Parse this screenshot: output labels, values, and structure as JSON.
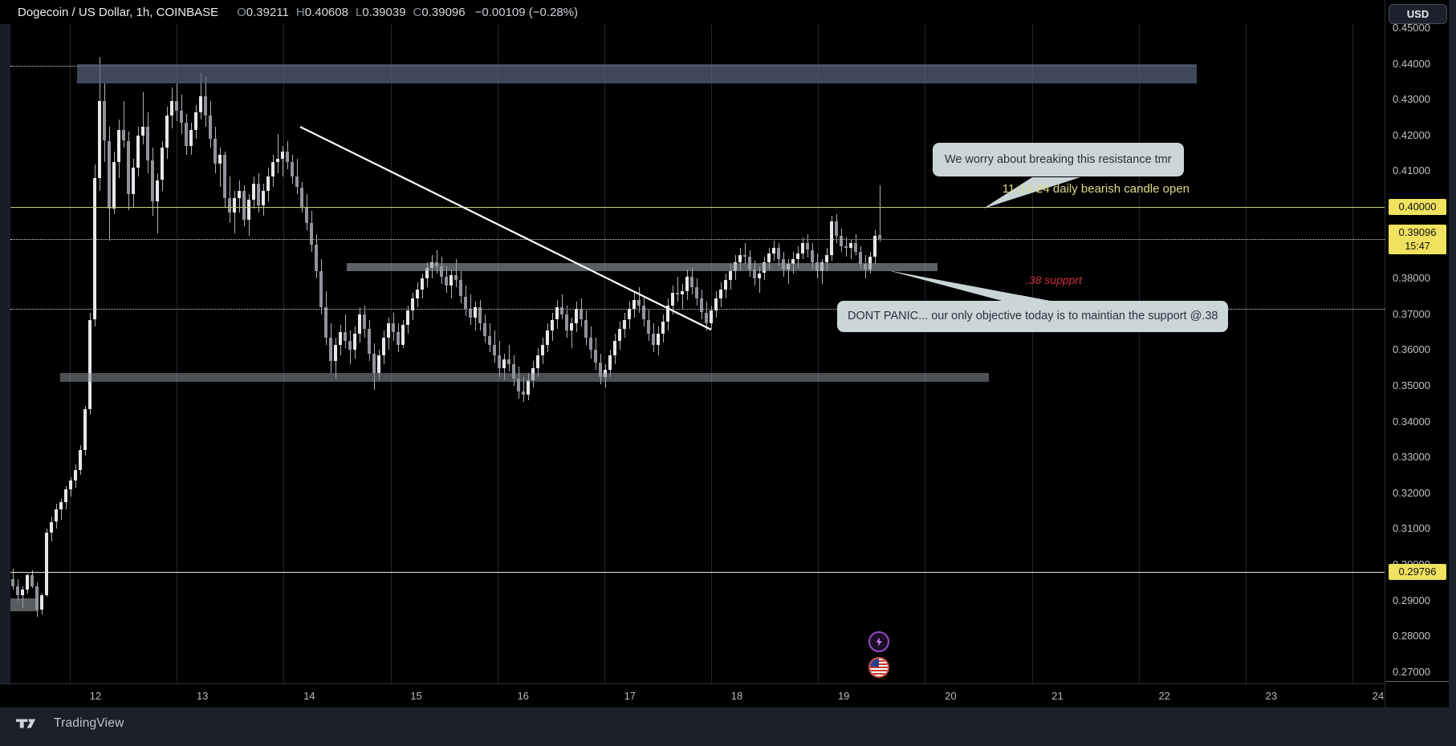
{
  "header": {
    "symbol": "Dogecoin / US Dollar, 1h, COINBASE",
    "open_label": "O",
    "open": "0.39211",
    "high_label": "H",
    "high": "0.40608",
    "low_label": "L",
    "low": "0.39039",
    "close_label": "C",
    "close": "0.39096",
    "change": "−0.00109 (−0.28%)"
  },
  "price_axis": {
    "currency": "USD",
    "badge_resistance": "0.40000",
    "badge_price": "0.39096",
    "badge_countdown": "15:47",
    "badge_support": "0.29796"
  },
  "annotations": {
    "callout_resistance": "We worry about breaking this resistance tmr",
    "callout_support": "DONT PANIC... our only objective today is to maintian the support @.38",
    "line_label": "11-14-24 daily bearish candle open",
    "support_label": ".38 suppprt"
  },
  "footer": {
    "brand": "TradingView"
  },
  "colors": {
    "background": "#000000",
    "panel": "#1b1f2a",
    "badge_yellow": "#f0e15e",
    "level_yellow": "#c9c97f",
    "support_line": "#e8e6cf",
    "callout_bg": "#ccd6d9",
    "callout_text": "#26333a",
    "label_yellow": "#dedc8b",
    "label_red": "#d2303e",
    "candle_up": "#e6e7e9",
    "candle_down": "#90939a",
    "icon_purple": "#9948c9",
    "icon_red_ring": "#c74b42"
  },
  "chart_data": {
    "type": "candlestick",
    "title": "Dogecoin / US Dollar, 1h, COINBASE",
    "interval": "1h",
    "legend_ohlc": {
      "open": 0.39211,
      "high": 0.40608,
      "low": 0.39039,
      "close": 0.39096,
      "change": -0.00109,
      "change_pct": -0.28
    },
    "x_axis": {
      "unit": "day of month (November)",
      "labels": [
        "12",
        "13",
        "14",
        "15",
        "16",
        "17",
        "18",
        "19",
        "20",
        "21",
        "22",
        "23",
        "24"
      ]
    },
    "y_axis": {
      "tick_min": 0.27,
      "tick_max": 0.45,
      "tick_step": 0.01,
      "grid": false
    },
    "levels": [
      {
        "name": "resistance-line-0.40",
        "price": 0.4,
        "style": "solid",
        "color": "#c9c97f",
        "label": "11-14-24 daily bearish candle open",
        "day_from": 11.2,
        "day_to": 24.06
      },
      {
        "name": "support-line-0.29796",
        "price": 0.29796,
        "style": "solid",
        "color": "#e8e6cf",
        "day_from": 11.2,
        "day_to": 24.06
      },
      {
        "name": "current-price-line",
        "price": 0.39096,
        "style": "dotted",
        "color": "#d8d9dd",
        "day_from": 11.2,
        "day_to": 24.06
      },
      {
        "name": "dotted-line-0.3715",
        "price": 0.3715,
        "style": "dotted",
        "color": "#d8d9dd",
        "day_from": 11.2,
        "day_to": 24.06
      },
      {
        "name": "dotted-line-0.4395",
        "price": 0.4395,
        "style": "dotted",
        "color": "#d8d9dd",
        "day_from": 11.2,
        "day_to": 22.3,
        "under_zone": true
      }
    ],
    "zones": [
      {
        "name": "resistance-zone-0.44",
        "day_from": 11.83,
        "day_to": 22.3,
        "price_from": 0.4346,
        "price_to": 0.4399,
        "color": "rgba(86,100,122,0.72)"
      },
      {
        "name": "support-zone-0.384",
        "day_from": 14.35,
        "day_to": 19.88,
        "price_from": 0.382,
        "price_to": 0.3843,
        "color": "rgba(148,153,161,0.62)"
      },
      {
        "name": "support-zone-0.352",
        "day_from": 11.67,
        "day_to": 20.36,
        "price_from": 0.3511,
        "price_to": 0.3536,
        "color": "rgba(138,143,151,0.56)"
      },
      {
        "name": "box-0.29",
        "day_from": 11.18,
        "day_to": 11.47,
        "price_from": 0.287,
        "price_to": 0.2906,
        "color": "rgba(148,153,161,0.6)"
      }
    ],
    "trendline": {
      "day_from": 13.915,
      "price_from": 0.4224,
      "day_to": 17.76,
      "price_to": 0.3657,
      "color": "#ffffff"
    },
    "candles_start_day": 11.212,
    "candles_step_day": 0.04506,
    "candles": [
      [
        0.296,
        0.299,
        0.293,
        0.294
      ],
      [
        0.294,
        0.296,
        0.29,
        0.2915
      ],
      [
        0.2915,
        0.294,
        0.288,
        0.293
      ],
      [
        0.293,
        0.2975,
        0.292,
        0.297
      ],
      [
        0.297,
        0.2985,
        0.2935,
        0.294
      ],
      [
        0.294,
        0.295,
        0.2855,
        0.2875
      ],
      [
        0.2875,
        0.292,
        0.286,
        0.2915
      ],
      [
        0.2915,
        0.31,
        0.291,
        0.309
      ],
      [
        0.309,
        0.3135,
        0.3065,
        0.312
      ],
      [
        0.312,
        0.317,
        0.31,
        0.3155
      ],
      [
        0.3155,
        0.3185,
        0.3125,
        0.3175
      ],
      [
        0.3175,
        0.322,
        0.3155,
        0.321
      ],
      [
        0.321,
        0.3245,
        0.319,
        0.3235
      ],
      [
        0.3235,
        0.328,
        0.3215,
        0.3265
      ],
      [
        0.3265,
        0.3335,
        0.325,
        0.332
      ],
      [
        0.332,
        0.3445,
        0.3305,
        0.3435
      ],
      [
        0.3435,
        0.3705,
        0.342,
        0.3685
      ],
      [
        0.3685,
        0.412,
        0.3665,
        0.408
      ],
      [
        0.408,
        0.442,
        0.4045,
        0.4295
      ],
      [
        0.4295,
        0.4345,
        0.4125,
        0.4185
      ],
      [
        0.4185,
        0.4225,
        0.3905,
        0.3995
      ],
      [
        0.3995,
        0.4155,
        0.398,
        0.4125
      ],
      [
        0.4125,
        0.4245,
        0.408,
        0.4215
      ],
      [
        0.4215,
        0.4295,
        0.4165,
        0.4185
      ],
      [
        0.4185,
        0.421,
        0.399,
        0.4035
      ],
      [
        0.4035,
        0.4135,
        0.4,
        0.411
      ],
      [
        0.411,
        0.4225,
        0.4085,
        0.42
      ],
      [
        0.42,
        0.432,
        0.4175,
        0.4225
      ],
      [
        0.4225,
        0.4265,
        0.4095,
        0.413
      ],
      [
        0.413,
        0.4165,
        0.3975,
        0.4015
      ],
      [
        0.4015,
        0.4095,
        0.3925,
        0.4075
      ],
      [
        0.4075,
        0.4185,
        0.4045,
        0.4165
      ],
      [
        0.4165,
        0.428,
        0.4135,
        0.4255
      ],
      [
        0.4255,
        0.4335,
        0.422,
        0.4295
      ],
      [
        0.4295,
        0.4345,
        0.424,
        0.427
      ],
      [
        0.427,
        0.4315,
        0.4205,
        0.4235
      ],
      [
        0.4235,
        0.426,
        0.4145,
        0.417
      ],
      [
        0.417,
        0.4235,
        0.4145,
        0.4215
      ],
      [
        0.4215,
        0.4285,
        0.419,
        0.4265
      ],
      [
        0.4265,
        0.4375,
        0.4245,
        0.431
      ],
      [
        0.431,
        0.4365,
        0.4225,
        0.4255
      ],
      [
        0.4255,
        0.4295,
        0.4165,
        0.419
      ],
      [
        0.419,
        0.4225,
        0.4095,
        0.412
      ],
      [
        0.412,
        0.4165,
        0.4055,
        0.4145
      ],
      [
        0.4145,
        0.4155,
        0.4,
        0.4025
      ],
      [
        0.4025,
        0.4085,
        0.3955,
        0.3985
      ],
      [
        0.3985,
        0.4045,
        0.3925,
        0.4025
      ],
      [
        0.4025,
        0.4075,
        0.3985,
        0.4045
      ],
      [
        0.4045,
        0.406,
        0.3945,
        0.3965
      ],
      [
        0.3965,
        0.4035,
        0.392,
        0.402
      ],
      [
        0.402,
        0.4085,
        0.3995,
        0.4065
      ],
      [
        0.4065,
        0.4095,
        0.3985,
        0.4005
      ],
      [
        0.4005,
        0.4065,
        0.3975,
        0.4045
      ],
      [
        0.4045,
        0.411,
        0.4015,
        0.4085
      ],
      [
        0.4085,
        0.4145,
        0.4055,
        0.4125
      ],
      [
        0.4125,
        0.4205,
        0.4095,
        0.4135
      ],
      [
        0.4135,
        0.417,
        0.4085,
        0.4155
      ],
      [
        0.4155,
        0.4185,
        0.4105,
        0.4125
      ],
      [
        0.4125,
        0.4145,
        0.4065,
        0.4085
      ],
      [
        0.4085,
        0.4135,
        0.4035,
        0.4055
      ],
      [
        0.4055,
        0.407,
        0.3985,
        0.4
      ],
      [
        0.4,
        0.4035,
        0.3935,
        0.3955
      ],
      [
        0.3955,
        0.399,
        0.3875,
        0.3895
      ],
      [
        0.3895,
        0.3925,
        0.38,
        0.382
      ],
      [
        0.382,
        0.3855,
        0.37,
        0.372
      ],
      [
        0.372,
        0.3765,
        0.3615,
        0.3635
      ],
      [
        0.3635,
        0.3675,
        0.3535,
        0.357
      ],
      [
        0.357,
        0.3635,
        0.352,
        0.3615
      ],
      [
        0.3615,
        0.367,
        0.3585,
        0.365
      ],
      [
        0.365,
        0.37,
        0.3605,
        0.3625
      ],
      [
        0.3625,
        0.3655,
        0.356,
        0.36
      ],
      [
        0.36,
        0.3665,
        0.3575,
        0.3645
      ],
      [
        0.3645,
        0.372,
        0.362,
        0.37
      ],
      [
        0.37,
        0.3725,
        0.3635,
        0.366
      ],
      [
        0.366,
        0.3685,
        0.357,
        0.359
      ],
      [
        0.359,
        0.362,
        0.349,
        0.3535
      ],
      [
        0.3535,
        0.36,
        0.3515,
        0.3585
      ],
      [
        0.3585,
        0.3655,
        0.356,
        0.3635
      ],
      [
        0.3635,
        0.369,
        0.36,
        0.3675
      ],
      [
        0.3675,
        0.3705,
        0.3625,
        0.365
      ],
      [
        0.365,
        0.3675,
        0.3595,
        0.3615
      ],
      [
        0.3615,
        0.3685,
        0.3605,
        0.367
      ],
      [
        0.367,
        0.3725,
        0.3645,
        0.371
      ],
      [
        0.371,
        0.376,
        0.3685,
        0.3745
      ],
      [
        0.3745,
        0.379,
        0.372,
        0.377
      ],
      [
        0.377,
        0.3815,
        0.3745,
        0.38
      ],
      [
        0.38,
        0.3845,
        0.3775,
        0.383
      ],
      [
        0.383,
        0.3865,
        0.38,
        0.3845
      ],
      [
        0.3845,
        0.388,
        0.3815,
        0.3835
      ],
      [
        0.3835,
        0.386,
        0.3785,
        0.3805
      ],
      [
        0.3805,
        0.3835,
        0.376,
        0.378
      ],
      [
        0.378,
        0.3825,
        0.3745,
        0.381
      ],
      [
        0.381,
        0.3855,
        0.3775,
        0.3795
      ],
      [
        0.3795,
        0.382,
        0.373,
        0.375
      ],
      [
        0.375,
        0.378,
        0.3695,
        0.3715
      ],
      [
        0.3715,
        0.3755,
        0.367,
        0.369
      ],
      [
        0.369,
        0.3735,
        0.3655,
        0.372
      ],
      [
        0.372,
        0.374,
        0.3655,
        0.3675
      ],
      [
        0.3675,
        0.37,
        0.362,
        0.364
      ],
      [
        0.364,
        0.3675,
        0.3595,
        0.3615
      ],
      [
        0.3615,
        0.3655,
        0.3565,
        0.3585
      ],
      [
        0.3585,
        0.3625,
        0.3525,
        0.355
      ],
      [
        0.355,
        0.359,
        0.3515,
        0.3575
      ],
      [
        0.3575,
        0.3615,
        0.354,
        0.356
      ],
      [
        0.356,
        0.3585,
        0.35,
        0.352
      ],
      [
        0.352,
        0.3555,
        0.3465,
        0.3485
      ],
      [
        0.3485,
        0.3525,
        0.3455,
        0.3475
      ],
      [
        0.3475,
        0.3535,
        0.346,
        0.3515
      ],
      [
        0.3515,
        0.357,
        0.3495,
        0.355
      ],
      [
        0.355,
        0.3605,
        0.3525,
        0.3585
      ],
      [
        0.3585,
        0.3635,
        0.356,
        0.3615
      ],
      [
        0.3615,
        0.3675,
        0.3595,
        0.3655
      ],
      [
        0.3655,
        0.3705,
        0.3625,
        0.3685
      ],
      [
        0.3685,
        0.374,
        0.366,
        0.372
      ],
      [
        0.372,
        0.3755,
        0.3685,
        0.37
      ],
      [
        0.37,
        0.3725,
        0.3635,
        0.3655
      ],
      [
        0.3655,
        0.369,
        0.3605,
        0.3675
      ],
      [
        0.3675,
        0.3735,
        0.365,
        0.3715
      ],
      [
        0.3715,
        0.3745,
        0.3665,
        0.3685
      ],
      [
        0.3685,
        0.371,
        0.3615,
        0.3635
      ],
      [
        0.3635,
        0.3665,
        0.3575,
        0.36
      ],
      [
        0.36,
        0.3635,
        0.3545,
        0.3565
      ],
      [
        0.3565,
        0.359,
        0.3505,
        0.3525
      ],
      [
        0.3525,
        0.356,
        0.3495,
        0.3545
      ],
      [
        0.3545,
        0.36,
        0.3525,
        0.3585
      ],
      [
        0.3585,
        0.3645,
        0.356,
        0.3625
      ],
      [
        0.3625,
        0.368,
        0.36,
        0.366
      ],
      [
        0.366,
        0.3705,
        0.3635,
        0.3685
      ],
      [
        0.3685,
        0.3735,
        0.366,
        0.3715
      ],
      [
        0.3715,
        0.376,
        0.369,
        0.374
      ],
      [
        0.374,
        0.3775,
        0.3705,
        0.3725
      ],
      [
        0.3725,
        0.375,
        0.3665,
        0.3685
      ],
      [
        0.3685,
        0.3715,
        0.3625,
        0.3645
      ],
      [
        0.3645,
        0.3675,
        0.3595,
        0.3615
      ],
      [
        0.3615,
        0.3665,
        0.3585,
        0.3645
      ],
      [
        0.3645,
        0.37,
        0.362,
        0.368
      ],
      [
        0.368,
        0.3745,
        0.3655,
        0.3725
      ],
      [
        0.3725,
        0.378,
        0.37,
        0.376
      ],
      [
        0.376,
        0.3805,
        0.3735,
        0.3755
      ],
      [
        0.3755,
        0.3785,
        0.3715,
        0.3765
      ],
      [
        0.3765,
        0.3825,
        0.374,
        0.3805
      ],
      [
        0.3805,
        0.383,
        0.3755,
        0.3775
      ],
      [
        0.3775,
        0.38,
        0.3725,
        0.3745
      ],
      [
        0.3745,
        0.377,
        0.3685,
        0.3705
      ],
      [
        0.3705,
        0.3735,
        0.3655,
        0.3675
      ],
      [
        0.3675,
        0.3725,
        0.366,
        0.371
      ],
      [
        0.371,
        0.3765,
        0.369,
        0.3745
      ],
      [
        0.3745,
        0.379,
        0.372,
        0.377
      ],
      [
        0.377,
        0.3815,
        0.3745,
        0.3795
      ],
      [
        0.3795,
        0.384,
        0.377,
        0.382
      ],
      [
        0.382,
        0.3865,
        0.3795,
        0.3845
      ],
      [
        0.3845,
        0.3885,
        0.382,
        0.3865
      ],
      [
        0.3865,
        0.39,
        0.384,
        0.386
      ],
      [
        0.386,
        0.388,
        0.3805,
        0.3825
      ],
      [
        0.3825,
        0.385,
        0.378,
        0.38
      ],
      [
        0.38,
        0.3835,
        0.376,
        0.3815
      ],
      [
        0.3815,
        0.386,
        0.3795,
        0.3845
      ],
      [
        0.3845,
        0.3885,
        0.3825,
        0.387
      ],
      [
        0.387,
        0.3905,
        0.385,
        0.3885
      ],
      [
        0.3885,
        0.39,
        0.3835,
        0.3855
      ],
      [
        0.3855,
        0.3875,
        0.3805,
        0.3825
      ],
      [
        0.3825,
        0.3855,
        0.3785,
        0.384
      ],
      [
        0.384,
        0.3875,
        0.3815,
        0.3855
      ],
      [
        0.3855,
        0.389,
        0.383,
        0.387
      ],
      [
        0.387,
        0.3915,
        0.3855,
        0.39
      ],
      [
        0.39,
        0.3925,
        0.386,
        0.388
      ],
      [
        0.388,
        0.39,
        0.3825,
        0.3845
      ],
      [
        0.3845,
        0.387,
        0.38,
        0.382
      ],
      [
        0.382,
        0.3855,
        0.3785,
        0.3845
      ],
      [
        0.3845,
        0.3885,
        0.382,
        0.3865
      ],
      [
        0.3865,
        0.3975,
        0.385,
        0.396
      ],
      [
        0.396,
        0.398,
        0.39,
        0.392
      ],
      [
        0.392,
        0.394,
        0.3875,
        0.389
      ],
      [
        0.389,
        0.3915,
        0.386,
        0.3885
      ],
      [
        0.3885,
        0.391,
        0.3855,
        0.39
      ],
      [
        0.39,
        0.3925,
        0.3865,
        0.3875
      ],
      [
        0.3875,
        0.389,
        0.3825,
        0.384
      ],
      [
        0.384,
        0.3865,
        0.38,
        0.3825
      ],
      [
        0.3825,
        0.3875,
        0.3815,
        0.386
      ],
      [
        0.386,
        0.3935,
        0.384,
        0.392
      ],
      [
        0.39211,
        0.40608,
        0.39039,
        0.39096
      ]
    ]
  }
}
